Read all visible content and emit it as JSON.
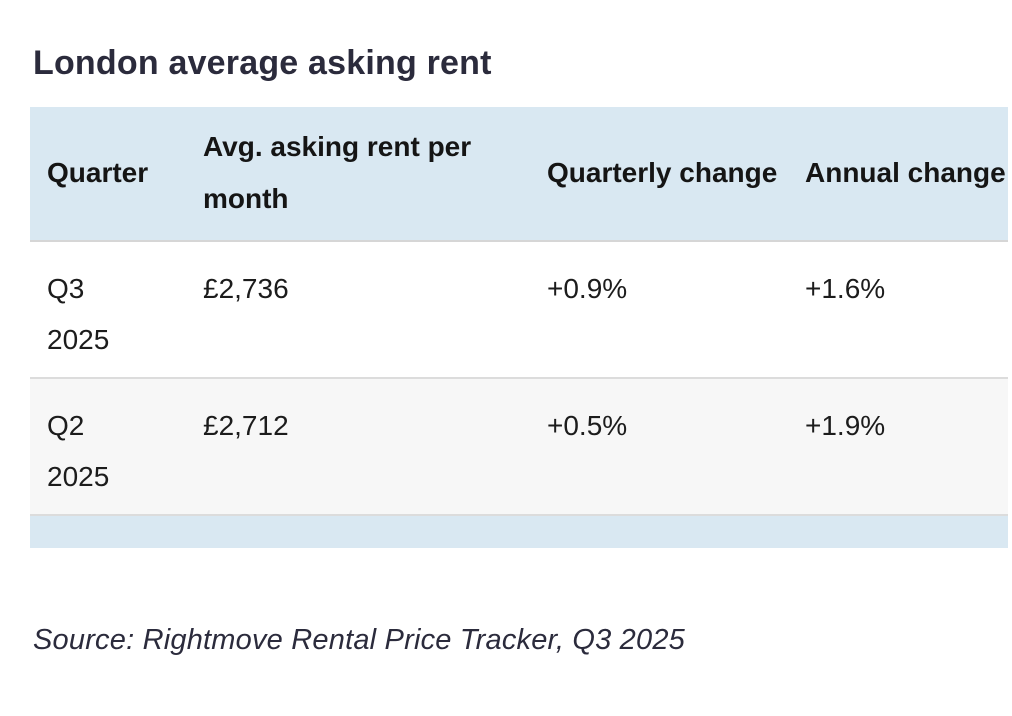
{
  "chart_data": {
    "type": "table",
    "title": "London average asking rent",
    "columns": [
      "Quarter",
      "Avg. asking rent per month",
      "Quarterly change",
      "Annual change"
    ],
    "rows": [
      [
        "Q3 2025",
        "£2,736",
        "+0.9%",
        "+1.6%"
      ],
      [
        "Q2 2025",
        "£2,712",
        "+0.5%",
        "+1.9%"
      ]
    ],
    "rows_numeric": [
      {
        "quarter": "Q3 2025",
        "avg_asking_rent_gbp": 2736,
        "quarterly_change_pct": 0.9,
        "annual_change_pct": 1.6
      },
      {
        "quarter": "Q2 2025",
        "avg_asking_rent_gbp": 2712,
        "quarterly_change_pct": 0.5,
        "annual_change_pct": 1.9
      }
    ],
    "source": "Source: Rightmove Rental Price Tracker, Q3 2025"
  },
  "colors": {
    "header_bg": "#d9e8f2",
    "footer_strip_bg": "#d9e8f2",
    "alt_row_bg": "#f7f7f7",
    "divider": "#dcdcdc",
    "title_text": "#2b2b3c",
    "cell_text": "#1c1c1c"
  }
}
